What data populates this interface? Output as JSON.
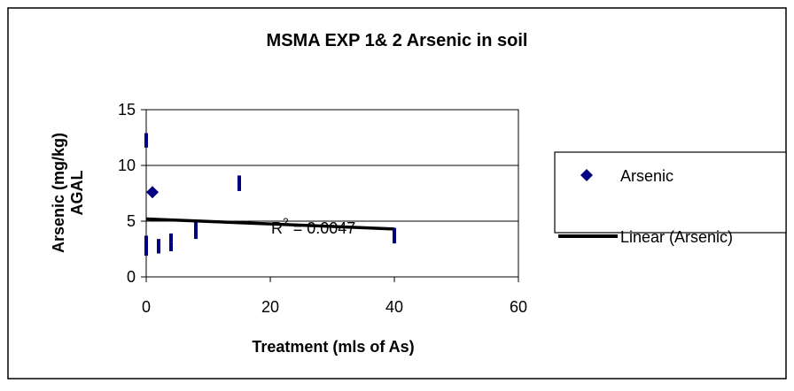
{
  "chart_data": {
    "type": "scatter",
    "title": "MSMA EXP 1& 2 Arsenic in soil",
    "xlabel": "Treatment (mls of As)",
    "ylabel_lines": [
      "Arsenic (mg/kg)",
      "AGAL"
    ],
    "xlim": [
      0,
      60
    ],
    "ylim": [
      0,
      15
    ],
    "xticks": [
      0,
      20,
      40,
      60
    ],
    "yticks": [
      0,
      5,
      10,
      15
    ],
    "grid": "horizontal",
    "legend_position": "right",
    "series": [
      {
        "name": "Arsenic",
        "marker": "diamond",
        "color": "#000080",
        "points": [
          {
            "x": 0,
            "y": 12.5
          },
          {
            "x": 0,
            "y": 12.0
          },
          {
            "x": 0,
            "y": 3.3
          },
          {
            "x": 0,
            "y": 2.8
          },
          {
            "x": 0,
            "y": 2.3
          },
          {
            "x": 1,
            "y": 7.6
          },
          {
            "x": 2,
            "y": 3.0
          },
          {
            "x": 2,
            "y": 2.5
          },
          {
            "x": 4,
            "y": 3.5
          },
          {
            "x": 4,
            "y": 2.7
          },
          {
            "x": 8,
            "y": 4.5
          },
          {
            "x": 8,
            "y": 3.8
          },
          {
            "x": 15,
            "y": 8.7
          },
          {
            "x": 15,
            "y": 8.1
          },
          {
            "x": 40,
            "y": 4.0
          },
          {
            "x": 40,
            "y": 3.4
          }
        ]
      }
    ],
    "trendline": {
      "name": "Linear (Arsenic)",
      "color": "#000000",
      "x": [
        0,
        40
      ],
      "y": [
        5.2,
        4.3
      ]
    },
    "annotation": {
      "base": "R",
      "exp": "2",
      "rest": " = 0.0047"
    }
  }
}
